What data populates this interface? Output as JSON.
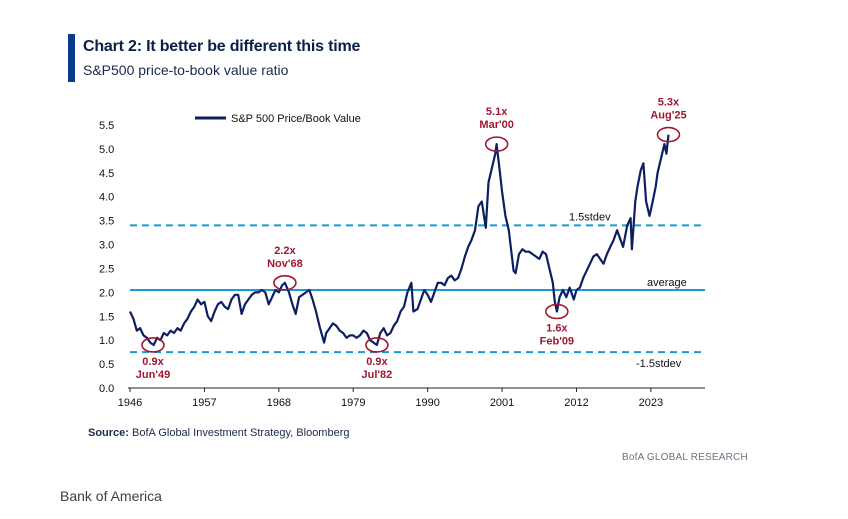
{
  "header": {
    "title": "Chart 2: It better be different this time",
    "subtitle": "S&P500 price-to-book value ratio"
  },
  "footer": {
    "source_label": "Source:",
    "source_text": " BofA Global Investment Strategy, Bloomberg",
    "research_tag": "BofA GLOBAL RESEARCH",
    "brand": "Bank of America"
  },
  "colors": {
    "series": "#0d1f63",
    "reference": "#1b9ad6",
    "annotation": "#a01830"
  },
  "chart_data": {
    "type": "line",
    "title": "",
    "xlabel": "",
    "ylabel": "",
    "xlim": [
      1946,
      2031
    ],
    "ylim": [
      0,
      5.5
    ],
    "xticks": [
      "1946",
      "1957",
      "1968",
      "1979",
      "1990",
      "2001",
      "2012",
      "2023"
    ],
    "yticks": [
      "0.0",
      "0.5",
      "1.0",
      "1.5",
      "2.0",
      "2.5",
      "3.0",
      "3.5",
      "4.0",
      "4.5",
      "5.0",
      "5.5"
    ],
    "grid": false,
    "legend_position": "top-left",
    "series": [
      {
        "name": "S&P 500 Price/Book Value",
        "points": [
          [
            1946.0,
            1.6
          ],
          [
            1946.5,
            1.45
          ],
          [
            1947.0,
            1.2
          ],
          [
            1947.5,
            1.25
          ],
          [
            1948.0,
            1.1
          ],
          [
            1948.5,
            1.05
          ],
          [
            1949.0,
            0.95
          ],
          [
            1949.5,
            0.9
          ],
          [
            1950.0,
            1.05
          ],
          [
            1950.5,
            1.0
          ],
          [
            1951.0,
            1.15
          ],
          [
            1951.5,
            1.1
          ],
          [
            1952.0,
            1.2
          ],
          [
            1952.5,
            1.15
          ],
          [
            1953.0,
            1.25
          ],
          [
            1953.5,
            1.2
          ],
          [
            1954.0,
            1.35
          ],
          [
            1954.5,
            1.45
          ],
          [
            1955.0,
            1.6
          ],
          [
            1955.5,
            1.7
          ],
          [
            1956.0,
            1.85
          ],
          [
            1956.5,
            1.75
          ],
          [
            1957.0,
            1.8
          ],
          [
            1957.5,
            1.5
          ],
          [
            1958.0,
            1.4
          ],
          [
            1958.5,
            1.6
          ],
          [
            1959.0,
            1.75
          ],
          [
            1959.5,
            1.8
          ],
          [
            1960.0,
            1.7
          ],
          [
            1960.5,
            1.65
          ],
          [
            1961.0,
            1.85
          ],
          [
            1961.5,
            1.95
          ],
          [
            1962.0,
            1.95
          ],
          [
            1962.5,
            1.55
          ],
          [
            1963.0,
            1.75
          ],
          [
            1963.5,
            1.85
          ],
          [
            1964.0,
            1.95
          ],
          [
            1964.5,
            2.0
          ],
          [
            1965.0,
            2.0
          ],
          [
            1965.5,
            2.05
          ],
          [
            1966.0,
            2.0
          ],
          [
            1966.5,
            1.75
          ],
          [
            1967.0,
            1.9
          ],
          [
            1967.5,
            2.05
          ],
          [
            1968.0,
            2.0
          ],
          [
            1968.5,
            2.15
          ],
          [
            1968.9,
            2.2
          ],
          [
            1969.5,
            2.0
          ],
          [
            1970.0,
            1.75
          ],
          [
            1970.5,
            1.55
          ],
          [
            1971.0,
            1.9
          ],
          [
            1971.5,
            1.95
          ],
          [
            1972.0,
            2.0
          ],
          [
            1972.5,
            2.05
          ],
          [
            1973.0,
            1.85
          ],
          [
            1973.5,
            1.6
          ],
          [
            1974.0,
            1.3
          ],
          [
            1974.7,
            0.95
          ],
          [
            1975.0,
            1.15
          ],
          [
            1975.5,
            1.25
          ],
          [
            1976.0,
            1.35
          ],
          [
            1976.5,
            1.3
          ],
          [
            1977.0,
            1.2
          ],
          [
            1977.5,
            1.15
          ],
          [
            1978.0,
            1.05
          ],
          [
            1978.5,
            1.1
          ],
          [
            1979.0,
            1.1
          ],
          [
            1979.5,
            1.05
          ],
          [
            1980.0,
            1.1
          ],
          [
            1980.5,
            1.2
          ],
          [
            1981.0,
            1.15
          ],
          [
            1981.5,
            1.0
          ],
          [
            1982.5,
            0.9
          ],
          [
            1983.0,
            1.15
          ],
          [
            1983.5,
            1.25
          ],
          [
            1984.0,
            1.1
          ],
          [
            1984.5,
            1.15
          ],
          [
            1985.0,
            1.3
          ],
          [
            1985.5,
            1.4
          ],
          [
            1986.0,
            1.6
          ],
          [
            1986.5,
            1.7
          ],
          [
            1987.0,
            2.0
          ],
          [
            1987.6,
            2.2
          ],
          [
            1987.9,
            1.6
          ],
          [
            1988.5,
            1.65
          ],
          [
            1989.0,
            1.85
          ],
          [
            1989.5,
            2.05
          ],
          [
            1990.0,
            1.95
          ],
          [
            1990.5,
            1.8
          ],
          [
            1991.0,
            2.0
          ],
          [
            1991.5,
            2.2
          ],
          [
            1992.0,
            2.2
          ],
          [
            1992.5,
            2.15
          ],
          [
            1993.0,
            2.3
          ],
          [
            1993.5,
            2.35
          ],
          [
            1994.0,
            2.25
          ],
          [
            1994.5,
            2.3
          ],
          [
            1995.0,
            2.5
          ],
          [
            1995.5,
            2.75
          ],
          [
            1996.0,
            2.95
          ],
          [
            1996.5,
            3.1
          ],
          [
            1997.0,
            3.3
          ],
          [
            1997.5,
            3.8
          ],
          [
            1998.0,
            3.9
          ],
          [
            1998.6,
            3.35
          ],
          [
            1999.0,
            4.3
          ],
          [
            1999.5,
            4.6
          ],
          [
            2000.0,
            4.9
          ],
          [
            2000.2,
            5.1
          ],
          [
            2000.6,
            4.6
          ],
          [
            2001.0,
            4.1
          ],
          [
            2001.5,
            3.6
          ],
          [
            2002.0,
            3.3
          ],
          [
            2002.7,
            2.45
          ],
          [
            2003.0,
            2.4
          ],
          [
            2003.5,
            2.8
          ],
          [
            2004.0,
            2.9
          ],
          [
            2004.5,
            2.85
          ],
          [
            2005.0,
            2.85
          ],
          [
            2005.5,
            2.8
          ],
          [
            2006.0,
            2.75
          ],
          [
            2006.5,
            2.7
          ],
          [
            2007.0,
            2.85
          ],
          [
            2007.5,
            2.8
          ],
          [
            2008.0,
            2.5
          ],
          [
            2008.5,
            2.2
          ],
          [
            2008.8,
            1.8
          ],
          [
            2009.1,
            1.6
          ],
          [
            2009.5,
            1.9
          ],
          [
            2010.0,
            2.05
          ],
          [
            2010.5,
            1.9
          ],
          [
            2011.0,
            2.1
          ],
          [
            2011.6,
            1.85
          ],
          [
            2012.0,
            2.05
          ],
          [
            2012.5,
            2.1
          ],
          [
            2013.0,
            2.3
          ],
          [
            2013.5,
            2.45
          ],
          [
            2014.0,
            2.6
          ],
          [
            2014.5,
            2.75
          ],
          [
            2015.0,
            2.8
          ],
          [
            2015.5,
            2.7
          ],
          [
            2016.0,
            2.6
          ],
          [
            2016.5,
            2.8
          ],
          [
            2017.0,
            2.95
          ],
          [
            2017.5,
            3.1
          ],
          [
            2018.0,
            3.3
          ],
          [
            2018.9,
            2.95
          ],
          [
            2019.5,
            3.4
          ],
          [
            2020.0,
            3.55
          ],
          [
            2020.2,
            2.9
          ],
          [
            2020.7,
            3.9
          ],
          [
            2021.0,
            4.2
          ],
          [
            2021.5,
            4.55
          ],
          [
            2021.9,
            4.7
          ],
          [
            2022.3,
            3.9
          ],
          [
            2022.8,
            3.6
          ],
          [
            2023.2,
            3.85
          ],
          [
            2023.7,
            4.2
          ],
          [
            2024.0,
            4.5
          ],
          [
            2024.5,
            4.8
          ],
          [
            2025.0,
            5.1
          ],
          [
            2025.3,
            4.9
          ],
          [
            2025.6,
            5.3
          ]
        ]
      }
    ],
    "reference_lines": [
      {
        "label": "1.5stdev",
        "value": 3.4,
        "style": "dashed"
      },
      {
        "label": "average",
        "value": 2.05,
        "style": "solid"
      },
      {
        "label": "-1.5stdev",
        "value": 0.75,
        "style": "dashed"
      }
    ],
    "annotations": [
      {
        "value_label": "0.9x",
        "date_label": "Jun'49",
        "x": 1949.4,
        "y": 0.9,
        "label_position": "below"
      },
      {
        "value_label": "2.2x",
        "date_label": "Nov'68",
        "x": 1968.9,
        "y": 2.2,
        "label_position": "above"
      },
      {
        "value_label": "0.9x",
        "date_label": "Jul'82",
        "x": 1982.5,
        "y": 0.9,
        "label_position": "below"
      },
      {
        "value_label": "5.1x",
        "date_label": "Mar'00",
        "x": 2000.2,
        "y": 5.1,
        "label_position": "above"
      },
      {
        "value_label": "1.6x",
        "date_label": "Feb'09",
        "x": 2009.1,
        "y": 1.6,
        "label_position": "below"
      },
      {
        "value_label": "5.3x",
        "date_label": "Aug'25",
        "x": 2025.6,
        "y": 5.3,
        "label_position": "above"
      }
    ]
  }
}
